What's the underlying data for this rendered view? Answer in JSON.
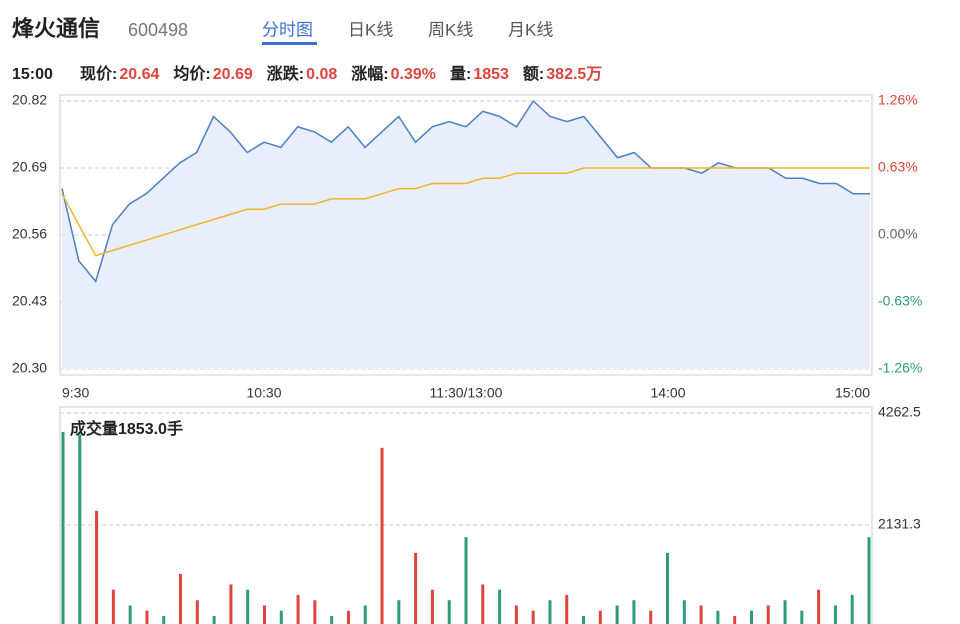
{
  "header": {
    "name": "烽火通信",
    "code": "600498",
    "tabs": [
      "分时图",
      "日K线",
      "周K线",
      "月K线"
    ]
  },
  "quote": {
    "time": "15:00",
    "items": [
      {
        "label": "现价:",
        "value": "20.64"
      },
      {
        "label": "均价:",
        "value": "20.69"
      },
      {
        "label": "涨跌:",
        "value": "0.08"
      },
      {
        "label": "涨幅:",
        "value": "0.39%"
      },
      {
        "label": "量:",
        "value": "1853"
      },
      {
        "label": "额:",
        "value": "382.5万"
      }
    ]
  },
  "chart_data": [
    {
      "type": "line",
      "categories": [
        "9:30",
        null,
        null,
        null,
        null,
        null,
        null,
        null,
        null,
        null,
        null,
        null,
        "10:30",
        null,
        null,
        null,
        null,
        null,
        null,
        null,
        null,
        null,
        null,
        null,
        "11:30/13:00",
        null,
        null,
        null,
        null,
        null,
        null,
        null,
        null,
        null,
        null,
        null,
        "14:00",
        null,
        null,
        null,
        null,
        null,
        null,
        null,
        null,
        null,
        null,
        null,
        "15:00"
      ],
      "series": [
        {
          "color": "#4a7fc1",
          "values": [
            20.65,
            20.51,
            20.47,
            20.58,
            20.62,
            20.64,
            20.67,
            20.7,
            20.72,
            20.79,
            20.76,
            20.72,
            20.74,
            20.73,
            20.77,
            20.76,
            20.74,
            20.77,
            20.73,
            20.76,
            20.79,
            20.74,
            20.77,
            20.78,
            20.77,
            20.8,
            20.79,
            20.77,
            20.82,
            20.79,
            20.78,
            20.79,
            20.75,
            20.71,
            20.72,
            20.69,
            20.69,
            20.69,
            20.68,
            20.7,
            20.69,
            20.69,
            20.69,
            20.67,
            20.67,
            20.66,
            20.66,
            20.64,
            20.64
          ]
        },
        {
          "color": "#f0b429",
          "values": [
            20.64,
            20.58,
            20.52,
            20.53,
            20.54,
            20.55,
            20.56,
            20.57,
            20.58,
            20.59,
            20.6,
            20.61,
            20.61,
            20.62,
            20.62,
            20.62,
            20.63,
            20.63,
            20.63,
            20.64,
            20.65,
            20.65,
            20.66,
            20.66,
            20.66,
            20.67,
            20.67,
            20.68,
            20.68,
            20.68,
            20.68,
            20.69,
            20.69,
            20.69,
            20.69,
            20.69,
            20.69,
            20.69,
            20.69,
            20.69,
            20.69,
            20.69,
            20.69,
            20.69,
            20.69,
            20.69,
            20.69,
            20.69,
            20.69
          ]
        }
      ],
      "ylim": [
        20.3,
        20.82
      ],
      "yticks": [
        {
          "value": 20.3,
          "label": "20.30"
        },
        20.43,
        20.56,
        20.69,
        20.82
      ],
      "y2lim": [
        -1.26,
        1.26
      ],
      "y2ticks": [
        {
          "value": -1.26,
          "label": "-1.26%"
        },
        {
          "value": -0.63,
          "label": "-0.63%"
        },
        {
          "value": 0,
          "label": "0.00%"
        },
        {
          "value": 0.63,
          "label": "0.63%"
        },
        {
          "value": 1.26,
          "label": "1.26%"
        }
      ],
      "grid": true,
      "area_color": "#e8eefb"
    },
    {
      "type": "bar",
      "title": "成交量1853.0手",
      "ylim": [
        0,
        4262.5
      ],
      "yticks": [
        2131.3,
        4262.5
      ],
      "values": [
        3900,
        3850,
        2400,
        900,
        600,
        500,
        400,
        1200,
        700,
        400,
        1000,
        900,
        600,
        500,
        800,
        700,
        400,
        500,
        600,
        3600,
        700,
        1600,
        900,
        700,
        1900,
        1000,
        900,
        600,
        500,
        700,
        800,
        400,
        500,
        600,
        700,
        500,
        1600,
        700,
        600,
        500,
        400,
        500,
        600,
        700,
        500,
        900,
        600,
        800,
        1900
      ],
      "colors": [
        "#2b9b7b",
        "#2b9b7b",
        "#e0443e",
        "#e0443e",
        "#2b9b7b",
        "#e0443e",
        "#2b9b7b",
        "#e0443e",
        "#e0443e",
        "#2b9b7b",
        "#e0443e",
        "#2b9b7b",
        "#e0443e",
        "#2b9b7b",
        "#e0443e",
        "#e0443e",
        "#2b9b7b",
        "#e0443e",
        "#2b9b7b",
        "#e0443e",
        "#2b9b7b",
        "#e0443e",
        "#e0443e",
        "#2b9b7b",
        "#2b9b7b",
        "#e0443e",
        "#2b9b7b",
        "#e0443e",
        "#e0443e",
        "#2b9b7b",
        "#e0443e",
        "#2b9b7b",
        "#e0443e",
        "#2b9b7b",
        "#2b9b7b",
        "#e0443e",
        "#2b9b7b",
        "#2b9b7b",
        "#e0443e",
        "#2b9b7b",
        "#e0443e",
        "#2b9b7b",
        "#e0443e",
        "#2b9b7b",
        "#2b9b7b",
        "#e0443e",
        "#2b9b7b",
        "#2b9b7b",
        "#2b9b7b"
      ]
    }
  ]
}
